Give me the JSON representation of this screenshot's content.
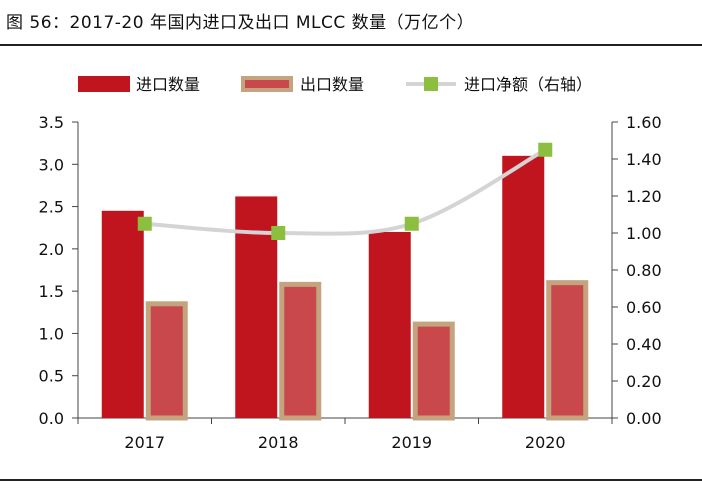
{
  "figure": {
    "title": "图 56：2017-20 年国内进口及出口 MLCC 数量（万亿个）"
  },
  "chart_data": {
    "type": "bar",
    "categories": [
      "2017",
      "2018",
      "2019",
      "2020"
    ],
    "series": [
      {
        "name": "进口数量",
        "kind": "bar",
        "axis": "left",
        "values": [
          2.45,
          2.62,
          2.2,
          3.1
        ],
        "color": "#c0141f"
      },
      {
        "name": "出口数量",
        "kind": "bar",
        "axis": "left",
        "values": [
          1.38,
          1.61,
          1.14,
          1.63
        ],
        "color": "#c8484c",
        "border": "#c4a47f"
      },
      {
        "name": "进口净额（右轴）",
        "kind": "line",
        "axis": "right",
        "values": [
          1.05,
          1.0,
          1.05,
          1.45
        ],
        "line_color": "#d4d4d4",
        "marker_color": "#8cbe3f"
      }
    ],
    "y_left": {
      "min": 0,
      "max": 3.5,
      "step": 0.5,
      "ticks": [
        "0.0",
        "0.5",
        "1.0",
        "1.5",
        "2.0",
        "2.5",
        "3.0",
        "3.5"
      ]
    },
    "y_right": {
      "min": 0,
      "max": 1.6,
      "step": 0.2,
      "ticks": [
        "0.00",
        "0.20",
        "0.40",
        "0.60",
        "0.80",
        "1.00",
        "1.20",
        "1.40",
        "1.60"
      ]
    },
    "legend_position": "top-left",
    "grid": false
  }
}
